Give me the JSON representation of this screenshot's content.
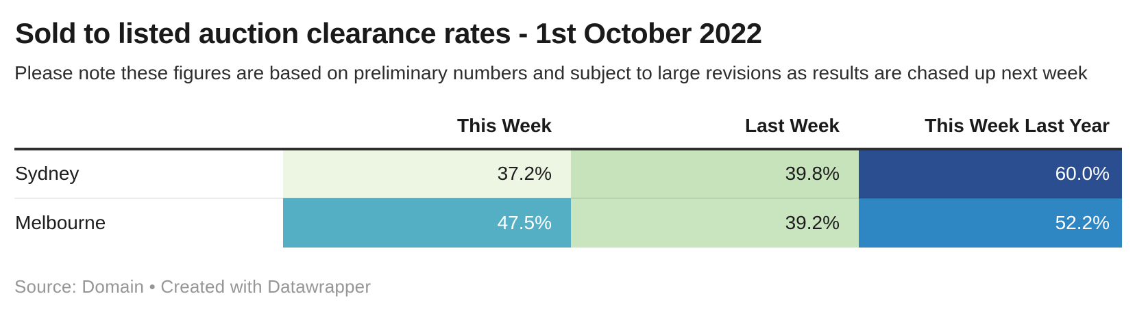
{
  "header": {
    "title": "Sold to listed auction clearance rates - 1st October 2022",
    "subtitle": "Please note these figures are based on preliminary numbers and subject to large revisions as results are chased up next week"
  },
  "table": {
    "columns": [
      {
        "label": ""
      },
      {
        "label": "This Week"
      },
      {
        "label": "Last Week"
      },
      {
        "label": "This Week Last Year"
      }
    ],
    "rows": [
      {
        "label": "Sydney",
        "cells": [
          {
            "value": "37.2%",
            "bg": "#edf6e3",
            "fg": "#1d1d1d",
            "style": "background:#edf6e3;color:#1d1d1d"
          },
          {
            "value": "39.8%",
            "bg": "#c6e3bc",
            "fg": "#1d1d1d",
            "style": "background:#c6e3bc;color:#1d1d1d"
          },
          {
            "value": "60.0%",
            "bg": "#2a4e8f",
            "fg": "#ffffff",
            "style": "background:#2a4e8f;color:#ffffff"
          }
        ]
      },
      {
        "label": "Melbourne",
        "cells": [
          {
            "value": "47.5%",
            "bg": "#55afc4",
            "fg": "#ffffff",
            "style": "background:#55afc4;color:#ffffff"
          },
          {
            "value": "39.2%",
            "bg": "#c9e5c0",
            "fg": "#1d1d1d",
            "style": "background:#c9e5c0;color:#1d1d1d"
          },
          {
            "value": "52.2%",
            "bg": "#2e86c2",
            "fg": "#ffffff",
            "style": "background:#2e86c2;color:#ffffff"
          }
        ]
      }
    ]
  },
  "footer": {
    "text": "Source: Domain • Created with Datawrapper"
  },
  "colors": {
    "header_rule": "#2e2e2e",
    "row_separator": "rgba(0,0,0,0.08)",
    "footer_text": "#969696",
    "scale": [
      "#edf6e3",
      "#c6e3bc",
      "#c9e5c0",
      "#55afc4",
      "#2e86c2",
      "#2a4e8f"
    ]
  },
  "chart_data": {
    "type": "table",
    "title": "Sold to listed auction clearance rates - 1st October 2022",
    "subtitle": "Please note these figures are based on preliminary numbers and subject to large revisions as results are chased up next week",
    "categories": [
      "Sydney",
      "Melbourne"
    ],
    "series": [
      {
        "name": "This Week",
        "values": [
          37.2,
          47.5
        ]
      },
      {
        "name": "Last Week",
        "values": [
          39.8,
          39.2
        ]
      },
      {
        "name": "This Week Last Year",
        "values": [
          60.0,
          52.2
        ]
      }
    ],
    "unit": "%",
    "value_alignment": "right",
    "heatmap": true,
    "source": "Domain",
    "tool": "Datawrapper"
  }
}
